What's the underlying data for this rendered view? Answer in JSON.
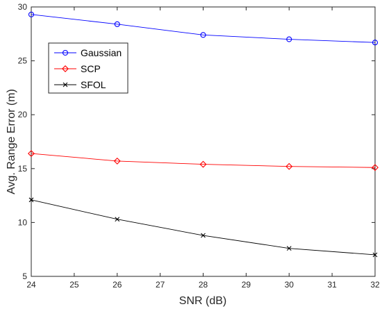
{
  "chart_data": {
    "type": "line",
    "title": "",
    "xlabel": "SNR (dB)",
    "ylabel": "Avg. Range Error (m)",
    "xlim": [
      24,
      32
    ],
    "ylim": [
      5,
      30
    ],
    "xticks": [
      24,
      25,
      26,
      27,
      28,
      29,
      30,
      31,
      32
    ],
    "yticks": [
      5,
      10,
      15,
      20,
      25,
      30
    ],
    "grid": false,
    "legend_position": "upper-left",
    "x": [
      24,
      26,
      28,
      30,
      32
    ],
    "series": [
      {
        "name": "Gaussian",
        "values": [
          29.3,
          28.4,
          27.4,
          27.0,
          26.7
        ],
        "color": "#0000ff",
        "marker": "circle"
      },
      {
        "name": "SCP",
        "values": [
          16.4,
          15.7,
          15.4,
          15.2,
          15.1
        ],
        "color": "#ff0000",
        "marker": "diamond"
      },
      {
        "name": "SFOL",
        "values": [
          12.1,
          10.3,
          8.8,
          7.6,
          7.0
        ],
        "color": "#000000",
        "marker": "x"
      }
    ]
  }
}
